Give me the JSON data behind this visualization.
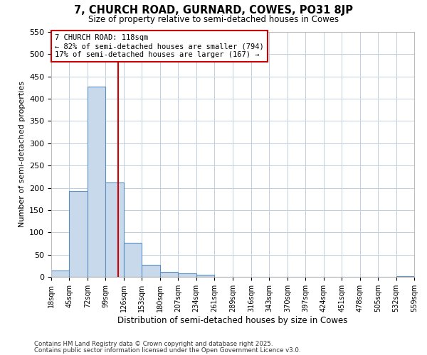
{
  "title": "7, CHURCH ROAD, GURNARD, COWES, PO31 8JP",
  "subtitle": "Size of property relative to semi-detached houses in Cowes",
  "xlabel": "Distribution of semi-detached houses by size in Cowes",
  "ylabel": "Number of semi-detached properties",
  "bin_edges": [
    18,
    45,
    72,
    99,
    126,
    153,
    180,
    207,
    234,
    261,
    289,
    316,
    343,
    370,
    397,
    424,
    451,
    478,
    505,
    532,
    559
  ],
  "bin_counts": [
    14,
    193,
    428,
    212,
    76,
    27,
    11,
    8,
    4,
    0,
    0,
    0,
    0,
    0,
    0,
    0,
    0,
    0,
    0,
    1
  ],
  "bar_facecolor": "#c9d9ec",
  "bar_edgecolor": "#5a8fc3",
  "property_value": 118,
  "vline_color": "#cc0000",
  "ylim": [
    0,
    550
  ],
  "yticks": [
    0,
    50,
    100,
    150,
    200,
    250,
    300,
    350,
    400,
    450,
    500,
    550
  ],
  "annotation_title": "7 CHURCH ROAD: 118sqm",
  "annotation_line1": "← 82% of semi-detached houses are smaller (794)",
  "annotation_line2": "17% of semi-detached houses are larger (167) →",
  "annotation_box_facecolor": "#ffffff",
  "annotation_box_edgecolor": "#cc0000",
  "footnote1": "Contains HM Land Registry data © Crown copyright and database right 2025.",
  "footnote2": "Contains public sector information licensed under the Open Government Licence v3.0.",
  "background_color": "#ffffff",
  "grid_color": "#c0cfe0",
  "tick_labels": [
    "18sqm",
    "45sqm",
    "72sqm",
    "99sqm",
    "126sqm",
    "153sqm",
    "180sqm",
    "207sqm",
    "234sqm",
    "261sqm",
    "289sqm",
    "316sqm",
    "343sqm",
    "370sqm",
    "397sqm",
    "424sqm",
    "451sqm",
    "478sqm",
    "505sqm",
    "532sqm",
    "559sqm"
  ]
}
